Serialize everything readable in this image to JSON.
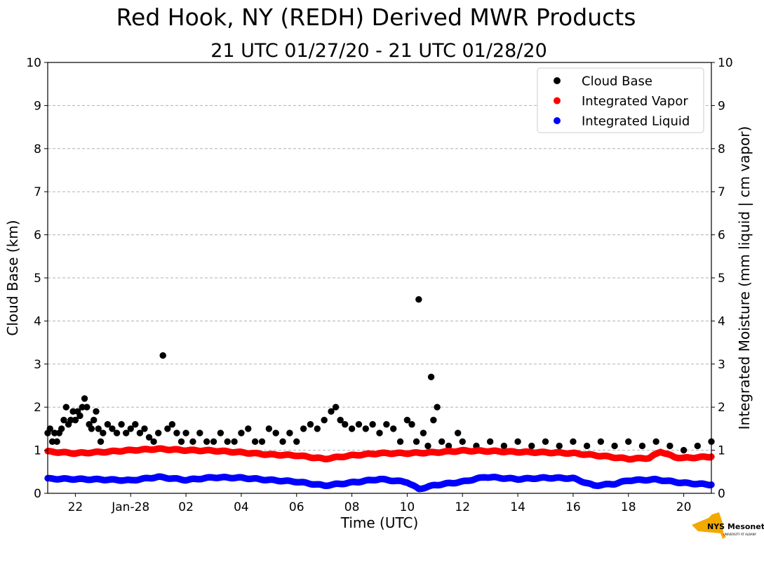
{
  "chart_data": {
    "type": "scatter",
    "title": "Red Hook, NY (REDH) Derived MWR Products",
    "subtitle": "21 UTC 01/27/20 - 21 UTC 01/28/20",
    "xlabel": "Time (UTC)",
    "ylabel_left": "Cloud Base (km)",
    "ylabel_right": "Integrated Moisture (mm liquid | cm vapor)",
    "xlim": [
      "2020-01-27 21:00",
      "2020-01-28 21:00"
    ],
    "ylim": [
      0,
      10
    ],
    "ylim_right": [
      0,
      10
    ],
    "grid": "horizontal dashed",
    "legend_position": "top-right",
    "x_ticks": [
      {
        "x": "2020-01-27 22:00",
        "label": "22"
      },
      {
        "x": "2020-01-28 00:00",
        "label": "Jan-28"
      },
      {
        "x": "2020-01-28 02:00",
        "label": "02"
      },
      {
        "x": "2020-01-28 04:00",
        "label": "04"
      },
      {
        "x": "2020-01-28 06:00",
        "label": "06"
      },
      {
        "x": "2020-01-28 08:00",
        "label": "08"
      },
      {
        "x": "2020-01-28 10:00",
        "label": "10"
      },
      {
        "x": "2020-01-28 12:00",
        "label": "12"
      },
      {
        "x": "2020-01-28 14:00",
        "label": "14"
      },
      {
        "x": "2020-01-28 16:00",
        "label": "16"
      },
      {
        "x": "2020-01-28 18:00",
        "label": "18"
      },
      {
        "x": "2020-01-28 20:00",
        "label": "20"
      }
    ],
    "y_ticks": [
      "0",
      "1",
      "2",
      "3",
      "4",
      "5",
      "6",
      "7",
      "8",
      "9",
      "10"
    ],
    "series": [
      {
        "name": "Cloud Base",
        "color": "#000000",
        "axis": "left",
        "points": [
          {
            "x": "2020-01-27 21:00",
            "y": 1.4
          },
          {
            "x": "2020-01-27 21:05",
            "y": 1.5
          },
          {
            "x": "2020-01-27 21:10",
            "y": 1.2
          },
          {
            "x": "2020-01-27 21:15",
            "y": 1.4
          },
          {
            "x": "2020-01-27 21:20",
            "y": 1.2
          },
          {
            "x": "2020-01-27 21:25",
            "y": 1.4
          },
          {
            "x": "2020-01-27 21:30",
            "y": 1.5
          },
          {
            "x": "2020-01-27 21:35",
            "y": 1.7
          },
          {
            "x": "2020-01-27 21:40",
            "y": 2.0
          },
          {
            "x": "2020-01-27 21:45",
            "y": 1.6
          },
          {
            "x": "2020-01-27 21:50",
            "y": 1.7
          },
          {
            "x": "2020-01-27 21:55",
            "y": 1.9
          },
          {
            "x": "2020-01-27 22:00",
            "y": 1.7
          },
          {
            "x": "2020-01-27 22:05",
            "y": 1.9
          },
          {
            "x": "2020-01-27 22:10",
            "y": 1.8
          },
          {
            "x": "2020-01-27 22:15",
            "y": 2.0
          },
          {
            "x": "2020-01-27 22:20",
            "y": 2.2
          },
          {
            "x": "2020-01-27 22:25",
            "y": 2.0
          },
          {
            "x": "2020-01-27 22:30",
            "y": 1.6
          },
          {
            "x": "2020-01-27 22:35",
            "y": 1.5
          },
          {
            "x": "2020-01-27 22:40",
            "y": 1.7
          },
          {
            "x": "2020-01-27 22:45",
            "y": 1.9
          },
          {
            "x": "2020-01-27 22:50",
            "y": 1.5
          },
          {
            "x": "2020-01-27 22:55",
            "y": 1.2
          },
          {
            "x": "2020-01-27 23:00",
            "y": 1.4
          },
          {
            "x": "2020-01-27 23:10",
            "y": 1.6
          },
          {
            "x": "2020-01-27 23:20",
            "y": 1.5
          },
          {
            "x": "2020-01-27 23:30",
            "y": 1.4
          },
          {
            "x": "2020-01-27 23:40",
            "y": 1.6
          },
          {
            "x": "2020-01-27 23:50",
            "y": 1.4
          },
          {
            "x": "2020-01-28 00:00",
            "y": 1.5
          },
          {
            "x": "2020-01-28 00:10",
            "y": 1.6
          },
          {
            "x": "2020-01-28 00:20",
            "y": 1.4
          },
          {
            "x": "2020-01-28 00:30",
            "y": 1.5
          },
          {
            "x": "2020-01-28 00:40",
            "y": 1.3
          },
          {
            "x": "2020-01-28 00:50",
            "y": 1.2
          },
          {
            "x": "2020-01-28 01:00",
            "y": 1.4
          },
          {
            "x": "2020-01-28 01:10",
            "y": 3.2
          },
          {
            "x": "2020-01-28 01:20",
            "y": 1.5
          },
          {
            "x": "2020-01-28 01:30",
            "y": 1.6
          },
          {
            "x": "2020-01-28 01:40",
            "y": 1.4
          },
          {
            "x": "2020-01-28 01:50",
            "y": 1.2
          },
          {
            "x": "2020-01-28 02:00",
            "y": 1.4
          },
          {
            "x": "2020-01-28 02:15",
            "y": 1.2
          },
          {
            "x": "2020-01-28 02:30",
            "y": 1.4
          },
          {
            "x": "2020-01-28 02:45",
            "y": 1.2
          },
          {
            "x": "2020-01-28 03:00",
            "y": 1.2
          },
          {
            "x": "2020-01-28 03:15",
            "y": 1.4
          },
          {
            "x": "2020-01-28 03:30",
            "y": 1.2
          },
          {
            "x": "2020-01-28 03:45",
            "y": 1.2
          },
          {
            "x": "2020-01-28 04:00",
            "y": 1.4
          },
          {
            "x": "2020-01-28 04:15",
            "y": 1.5
          },
          {
            "x": "2020-01-28 04:30",
            "y": 1.2
          },
          {
            "x": "2020-01-28 04:45",
            "y": 1.2
          },
          {
            "x": "2020-01-28 05:00",
            "y": 1.5
          },
          {
            "x": "2020-01-28 05:15",
            "y": 1.4
          },
          {
            "x": "2020-01-28 05:30",
            "y": 1.2
          },
          {
            "x": "2020-01-28 05:45",
            "y": 1.4
          },
          {
            "x": "2020-01-28 06:00",
            "y": 1.2
          },
          {
            "x": "2020-01-28 06:15",
            "y": 1.5
          },
          {
            "x": "2020-01-28 06:30",
            "y": 1.6
          },
          {
            "x": "2020-01-28 06:45",
            "y": 1.5
          },
          {
            "x": "2020-01-28 07:00",
            "y": 1.7
          },
          {
            "x": "2020-01-28 07:15",
            "y": 1.9
          },
          {
            "x": "2020-01-28 07:25",
            "y": 2.0
          },
          {
            "x": "2020-01-28 07:35",
            "y": 1.7
          },
          {
            "x": "2020-01-28 07:45",
            "y": 1.6
          },
          {
            "x": "2020-01-28 08:00",
            "y": 1.5
          },
          {
            "x": "2020-01-28 08:15",
            "y": 1.6
          },
          {
            "x": "2020-01-28 08:30",
            "y": 1.5
          },
          {
            "x": "2020-01-28 08:45",
            "y": 1.6
          },
          {
            "x": "2020-01-28 09:00",
            "y": 1.4
          },
          {
            "x": "2020-01-28 09:15",
            "y": 1.6
          },
          {
            "x": "2020-01-28 09:30",
            "y": 1.5
          },
          {
            "x": "2020-01-28 09:45",
            "y": 1.2
          },
          {
            "x": "2020-01-28 10:00",
            "y": 1.7
          },
          {
            "x": "2020-01-28 10:10",
            "y": 1.6
          },
          {
            "x": "2020-01-28 10:20",
            "y": 1.2
          },
          {
            "x": "2020-01-28 10:25",
            "y": 4.5
          },
          {
            "x": "2020-01-28 10:35",
            "y": 1.4
          },
          {
            "x": "2020-01-28 10:45",
            "y": 1.1
          },
          {
            "x": "2020-01-28 10:52",
            "y": 2.7
          },
          {
            "x": "2020-01-28 10:57",
            "y": 1.7
          },
          {
            "x": "2020-01-28 11:05",
            "y": 2.0
          },
          {
            "x": "2020-01-28 11:15",
            "y": 1.2
          },
          {
            "x": "2020-01-28 11:30",
            "y": 1.1
          },
          {
            "x": "2020-01-28 11:50",
            "y": 1.4
          },
          {
            "x": "2020-01-28 12:00",
            "y": 1.2
          },
          {
            "x": "2020-01-28 12:30",
            "y": 1.1
          },
          {
            "x": "2020-01-28 13:00",
            "y": 1.2
          },
          {
            "x": "2020-01-28 13:30",
            "y": 1.1
          },
          {
            "x": "2020-01-28 14:00",
            "y": 1.2
          },
          {
            "x": "2020-01-28 14:30",
            "y": 1.1
          },
          {
            "x": "2020-01-28 15:00",
            "y": 1.2
          },
          {
            "x": "2020-01-28 15:30",
            "y": 1.1
          },
          {
            "x": "2020-01-28 16:00",
            "y": 1.2
          },
          {
            "x": "2020-01-28 16:30",
            "y": 1.1
          },
          {
            "x": "2020-01-28 17:00",
            "y": 1.2
          },
          {
            "x": "2020-01-28 17:30",
            "y": 1.1
          },
          {
            "x": "2020-01-28 18:00",
            "y": 1.2
          },
          {
            "x": "2020-01-28 18:30",
            "y": 1.1
          },
          {
            "x": "2020-01-28 19:00",
            "y": 1.2
          },
          {
            "x": "2020-01-28 19:30",
            "y": 1.1
          },
          {
            "x": "2020-01-28 20:00",
            "y": 1.0
          },
          {
            "x": "2020-01-28 20:30",
            "y": 1.1
          },
          {
            "x": "2020-01-28 21:00",
            "y": 1.2
          }
        ]
      },
      {
        "name": "Integrated Vapor",
        "color": "#ff0000",
        "axis": "right",
        "points": [
          {
            "x": "2020-01-27 21:00",
            "y": 0.97
          },
          {
            "x": "2020-01-27 22:00",
            "y": 0.93
          },
          {
            "x": "2020-01-27 23:00",
            "y": 0.96
          },
          {
            "x": "2020-01-28 00:00",
            "y": 1.0
          },
          {
            "x": "2020-01-28 01:00",
            "y": 1.03
          },
          {
            "x": "2020-01-28 02:00",
            "y": 1.0
          },
          {
            "x": "2020-01-28 03:00",
            "y": 0.99
          },
          {
            "x": "2020-01-28 04:00",
            "y": 0.95
          },
          {
            "x": "2020-01-28 05:00",
            "y": 0.9
          },
          {
            "x": "2020-01-28 06:00",
            "y": 0.88
          },
          {
            "x": "2020-01-28 07:00",
            "y": 0.8
          },
          {
            "x": "2020-01-28 08:00",
            "y": 0.88
          },
          {
            "x": "2020-01-28 09:00",
            "y": 0.93
          },
          {
            "x": "2020-01-28 10:00",
            "y": 0.93
          },
          {
            "x": "2020-01-28 11:00",
            "y": 0.95
          },
          {
            "x": "2020-01-28 12:00",
            "y": 0.99
          },
          {
            "x": "2020-01-28 13:00",
            "y": 0.98
          },
          {
            "x": "2020-01-28 14:00",
            "y": 0.96
          },
          {
            "x": "2020-01-28 15:00",
            "y": 0.95
          },
          {
            "x": "2020-01-28 16:00",
            "y": 0.93
          },
          {
            "x": "2020-01-28 17:00",
            "y": 0.87
          },
          {
            "x": "2020-01-28 18:00",
            "y": 0.8
          },
          {
            "x": "2020-01-28 18:45",
            "y": 0.82
          },
          {
            "x": "2020-01-28 19:10",
            "y": 0.97
          },
          {
            "x": "2020-01-28 19:40",
            "y": 0.84
          },
          {
            "x": "2020-01-28 20:00",
            "y": 0.82
          },
          {
            "x": "2020-01-28 21:00",
            "y": 0.85
          }
        ]
      },
      {
        "name": "Integrated Liquid",
        "color": "#0000ff",
        "axis": "right",
        "points": [
          {
            "x": "2020-01-27 21:00",
            "y": 0.34
          },
          {
            "x": "2020-01-27 22:00",
            "y": 0.33
          },
          {
            "x": "2020-01-27 23:00",
            "y": 0.32
          },
          {
            "x": "2020-01-28 00:00",
            "y": 0.3
          },
          {
            "x": "2020-01-28 01:00",
            "y": 0.38
          },
          {
            "x": "2020-01-28 02:00",
            "y": 0.31
          },
          {
            "x": "2020-01-28 03:00",
            "y": 0.37
          },
          {
            "x": "2020-01-28 04:00",
            "y": 0.36
          },
          {
            "x": "2020-01-28 05:00",
            "y": 0.31
          },
          {
            "x": "2020-01-28 06:00",
            "y": 0.27
          },
          {
            "x": "2020-01-28 07:00",
            "y": 0.18
          },
          {
            "x": "2020-01-28 08:00",
            "y": 0.25
          },
          {
            "x": "2020-01-28 09:00",
            "y": 0.33
          },
          {
            "x": "2020-01-28 10:00",
            "y": 0.26
          },
          {
            "x": "2020-01-28 10:25",
            "y": 0.1
          },
          {
            "x": "2020-01-28 11:00",
            "y": 0.19
          },
          {
            "x": "2020-01-28 12:00",
            "y": 0.27
          },
          {
            "x": "2020-01-28 12:50",
            "y": 0.38
          },
          {
            "x": "2020-01-28 14:00",
            "y": 0.33
          },
          {
            "x": "2020-01-28 15:00",
            "y": 0.36
          },
          {
            "x": "2020-01-28 16:00",
            "y": 0.35
          },
          {
            "x": "2020-01-28 16:45",
            "y": 0.18
          },
          {
            "x": "2020-01-28 17:30",
            "y": 0.22
          },
          {
            "x": "2020-01-28 18:00",
            "y": 0.3
          },
          {
            "x": "2020-01-28 19:00",
            "y": 0.32
          },
          {
            "x": "2020-01-28 20:00",
            "y": 0.24
          },
          {
            "x": "2020-01-28 21:00",
            "y": 0.2
          }
        ]
      }
    ]
  },
  "logo": {
    "text": "NYS Mesonet",
    "subtext": "UNIVERSITY AT ALBANY",
    "fill": "#f2a900",
    "text_color": "#4b2e83"
  }
}
